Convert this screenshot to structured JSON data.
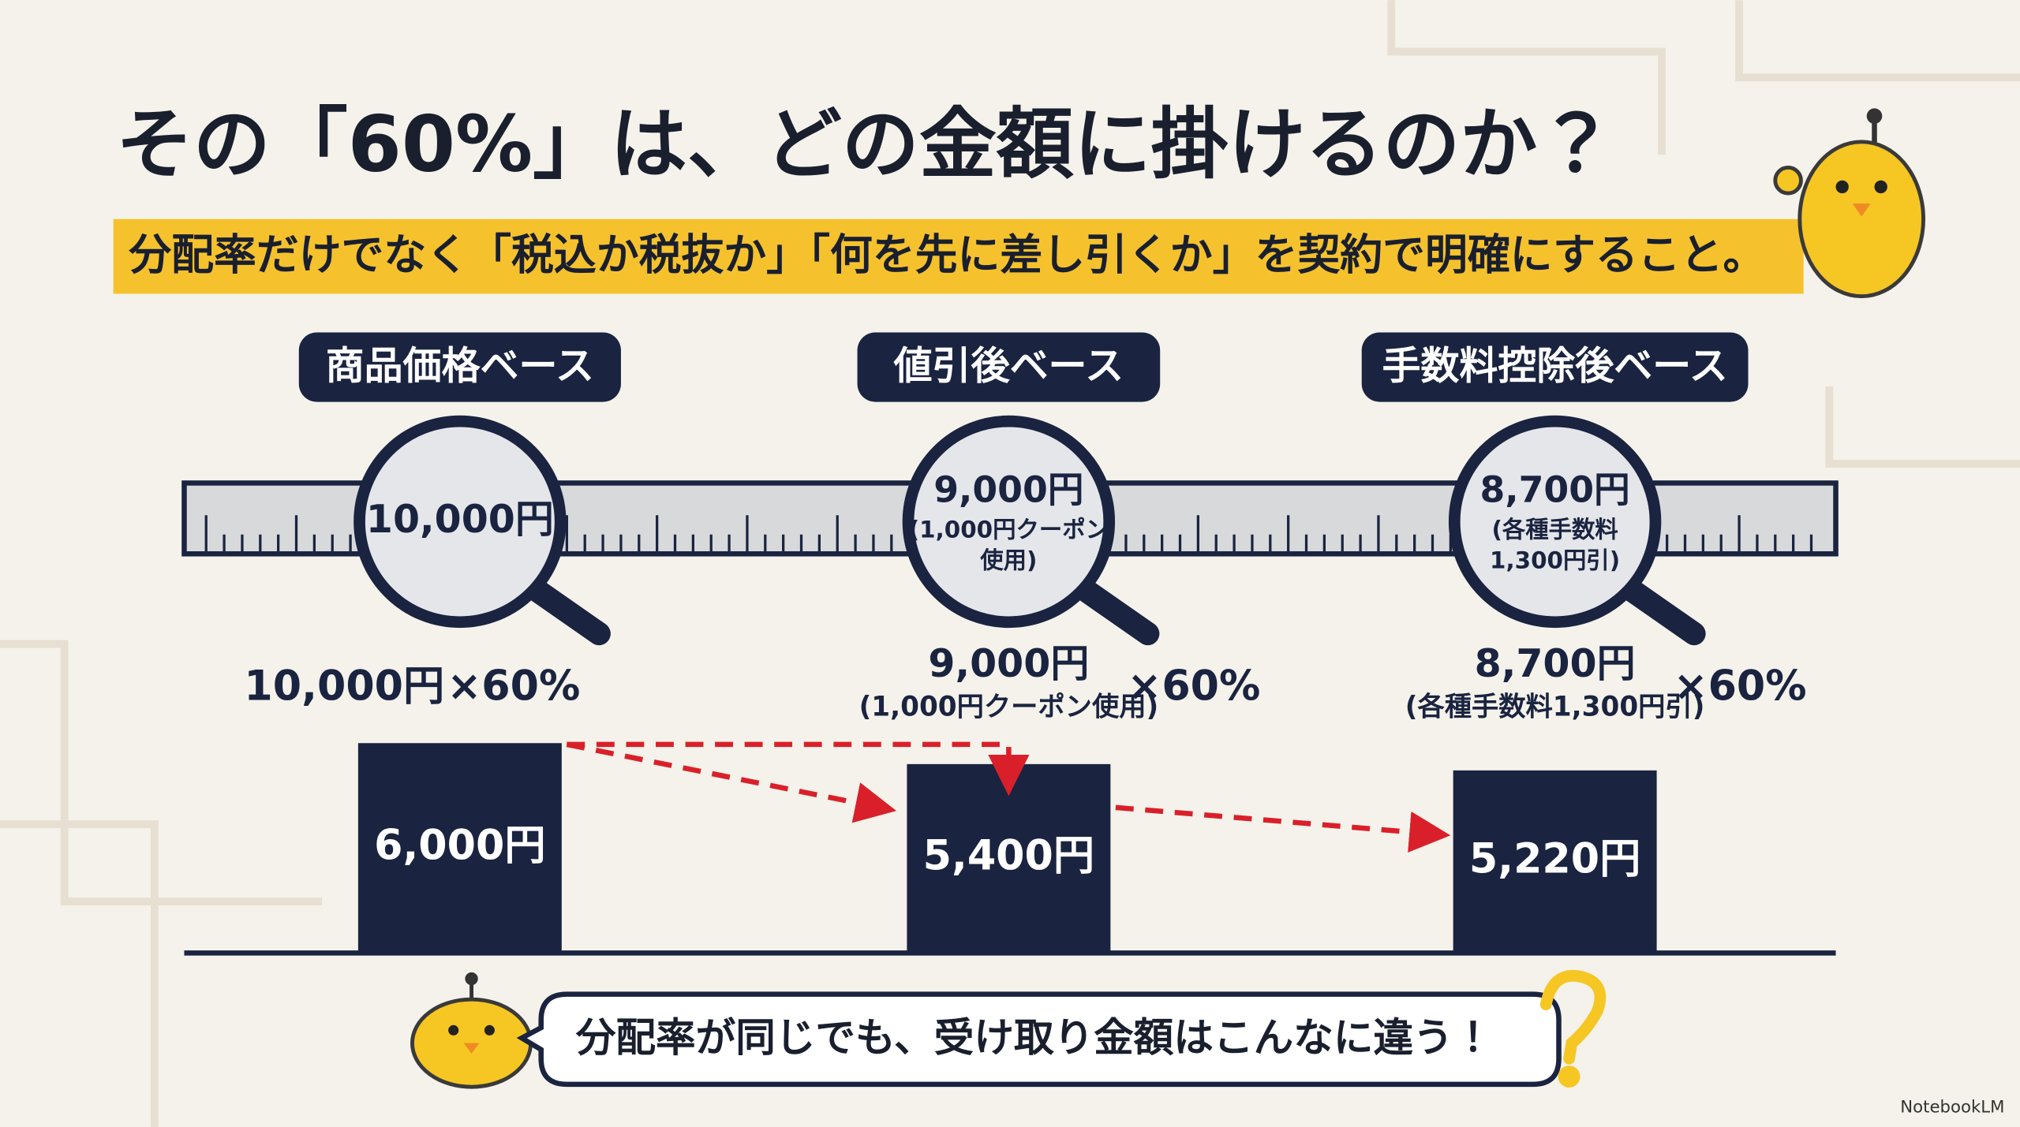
{
  "title": "その「60%」は、どの金額に掛けるのか？",
  "subtitle": "分配率だけでなく「税込か税抜か」「何を先に差し引くか」を契約で明確にすること。",
  "columns": [
    {
      "label": "商品価格ベース",
      "lens": {
        "amount": "10,000円",
        "note": []
      },
      "formula": {
        "amount": "10,000円",
        "multiplier": "×60%"
      }
    },
    {
      "label": "値引後ベース",
      "lens": {
        "amount": "9,000円",
        "note": [
          "(1,000円クーポン",
          "使用)"
        ]
      },
      "formula": {
        "amount": "9,000円",
        "note": "(1,000円クーポン使用)",
        "multiplier": "×60%"
      }
    },
    {
      "label": "手数料控除後ベース",
      "lens": {
        "amount": "8,700円",
        "note": [
          "(各種手数料",
          "1,300円引)"
        ]
      },
      "formula": {
        "amount": "8,700円",
        "note": "(各種手数料1,300円引)",
        "multiplier": "×60%"
      }
    }
  ],
  "bars": {
    "values": [
      6000,
      5400,
      5220
    ],
    "value_labels": [
      "6,000円",
      "5,400円",
      "5,220円"
    ]
  },
  "callout": "分配率が同じでも、受け取り金額はこんなに違う！",
  "watermark": "NotebookLM"
}
